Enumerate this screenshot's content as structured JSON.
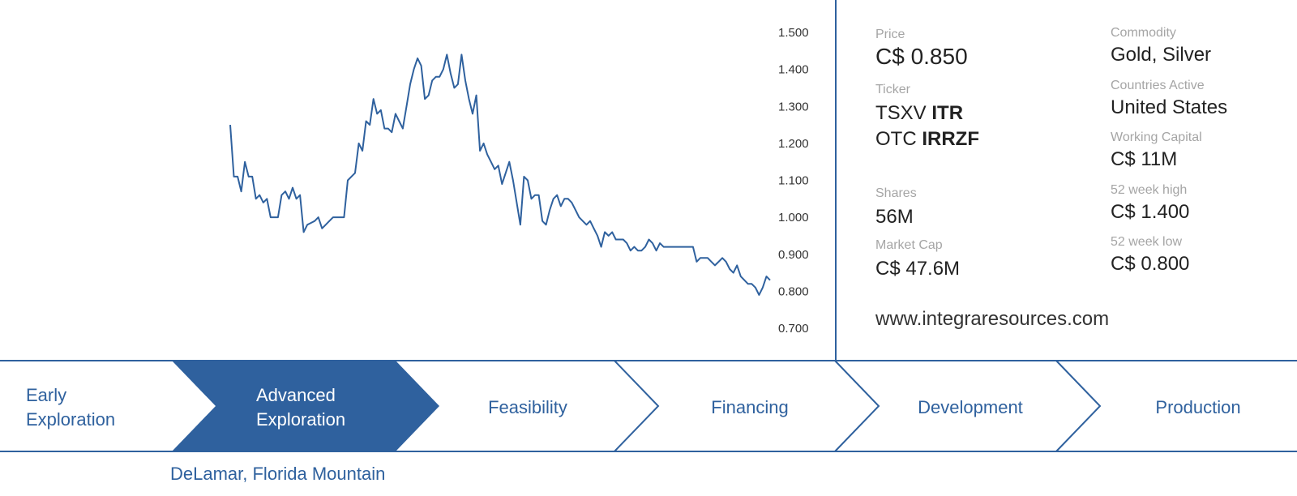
{
  "info": {
    "price_label": "Price",
    "price": "C$ 0.850",
    "ticker_label": "Ticker",
    "tickers": [
      {
        "exchange": "TSXV",
        "symbol": "ITR"
      },
      {
        "exchange": "OTC",
        "symbol": "IRRZF"
      }
    ],
    "shares_label": "Shares",
    "shares": "56M",
    "market_cap_label": "Market Cap",
    "market_cap": "C$ 47.6M",
    "commodity_label": "Commodity",
    "commodity": "Gold, Silver",
    "countries_label": "Countries Active",
    "countries": "United States",
    "working_capital_label": "Working Capital",
    "working_capital": "C$ 11M",
    "high_label": "52 week high",
    "high": "C$ 1.400",
    "low_label": "52 week low",
    "low": "C$ 0.800",
    "website": "www.integraresources.com"
  },
  "stages": [
    {
      "lines": [
        "Early",
        "Exploration"
      ],
      "active": false
    },
    {
      "lines": [
        "Advanced",
        "Exploration"
      ],
      "active": true
    },
    {
      "lines": [
        "Feasibility"
      ],
      "active": false
    },
    {
      "lines": [
        "Financing"
      ],
      "active": false
    },
    {
      "lines": [
        "Development"
      ],
      "active": false
    },
    {
      "lines": [
        "Production"
      ],
      "active": false
    }
  ],
  "projects": "DeLamar, Florida Mountain",
  "colors": {
    "accent": "#2f619e",
    "label": "#a5a5a5",
    "text": "#222222"
  },
  "chart_data": {
    "type": "line",
    "title": "",
    "xlabel": "",
    "ylabel": "",
    "ylim": [
      0.7,
      1.5
    ],
    "yticks": [
      "1.500",
      "1.400",
      "1.300",
      "1.200",
      "1.100",
      "1.000",
      "0.900",
      "0.800",
      "0.700"
    ],
    "y_axis_position": "right",
    "grid": false,
    "series": [
      {
        "values": [
          1.25,
          1.11,
          1.11,
          1.07,
          1.15,
          1.11,
          1.11,
          1.05,
          1.06,
          1.04,
          1.05,
          1.0,
          1.0,
          1.0,
          1.06,
          1.07,
          1.05,
          1.08,
          1.05,
          1.06,
          0.96,
          0.98,
          0.985,
          0.99,
          1.0,
          0.97,
          0.98,
          0.99,
          1.0,
          1.0,
          1.0,
          1.0,
          1.1,
          1.11,
          1.12,
          1.2,
          1.18,
          1.26,
          1.25,
          1.32,
          1.28,
          1.29,
          1.24,
          1.24,
          1.23,
          1.28,
          1.26,
          1.24,
          1.3,
          1.36,
          1.4,
          1.43,
          1.41,
          1.32,
          1.33,
          1.37,
          1.38,
          1.38,
          1.4,
          1.44,
          1.39,
          1.35,
          1.36,
          1.44,
          1.37,
          1.32,
          1.28,
          1.33,
          1.18,
          1.2,
          1.17,
          1.15,
          1.13,
          1.14,
          1.09,
          1.12,
          1.15,
          1.1,
          1.04,
          0.98,
          1.11,
          1.1,
          1.05,
          1.06,
          1.06,
          0.99,
          0.98,
          1.02,
          1.05,
          1.06,
          1.03,
          1.05,
          1.05,
          1.04,
          1.02,
          1.0,
          0.99,
          0.98,
          0.99,
          0.97,
          0.95,
          0.92,
          0.96,
          0.95,
          0.96,
          0.94,
          0.94,
          0.94,
          0.93,
          0.91,
          0.92,
          0.91,
          0.91,
          0.92,
          0.94,
          0.93,
          0.91,
          0.93,
          0.92,
          0.92,
          0.92,
          0.92,
          0.92,
          0.92,
          0.92,
          0.92,
          0.92,
          0.88,
          0.89,
          0.89,
          0.89,
          0.88,
          0.87,
          0.88,
          0.89,
          0.88,
          0.86,
          0.85,
          0.87,
          0.84,
          0.83,
          0.82,
          0.82,
          0.81,
          0.79,
          0.81,
          0.84,
          0.83
        ]
      }
    ]
  }
}
